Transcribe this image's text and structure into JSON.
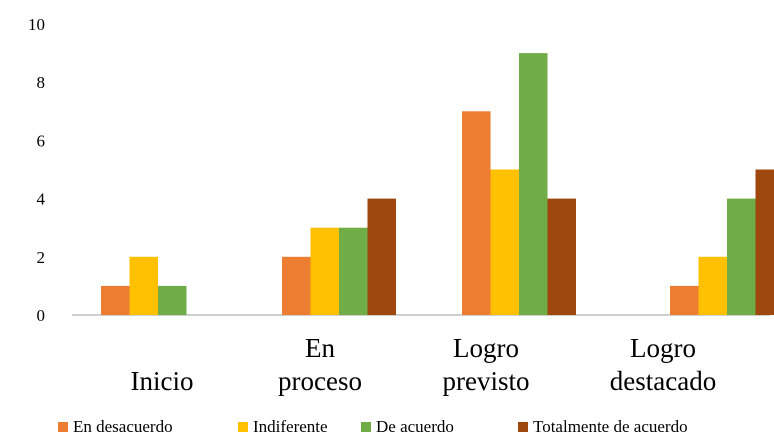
{
  "chart_data": {
    "type": "bar",
    "categories": [
      [
        "Inicio"
      ],
      [
        "En",
        "proceso"
      ],
      [
        "Logro",
        "previsto"
      ],
      [
        "Logro",
        "destacado"
      ]
    ],
    "series": [
      {
        "name": "En desacuerdo",
        "color": "#ED7D31",
        "values": [
          1,
          2,
          7,
          1
        ]
      },
      {
        "name": "Indiferente",
        "color": "#FFC000",
        "values": [
          2,
          3,
          5,
          2
        ]
      },
      {
        "name": "De acuerdo",
        "color": "#70AD47",
        "values": [
          1,
          3,
          9,
          4
        ]
      },
      {
        "name": "Totalmente de acuerdo",
        "color": "#9E480E",
        "values": [
          null,
          4,
          4,
          5
        ]
      }
    ],
    "yticks": [
      "0",
      "2",
      "4",
      "6",
      "8",
      "10"
    ],
    "ylim": [
      0,
      10
    ],
    "grid": false,
    "legend_position": "bottom"
  }
}
